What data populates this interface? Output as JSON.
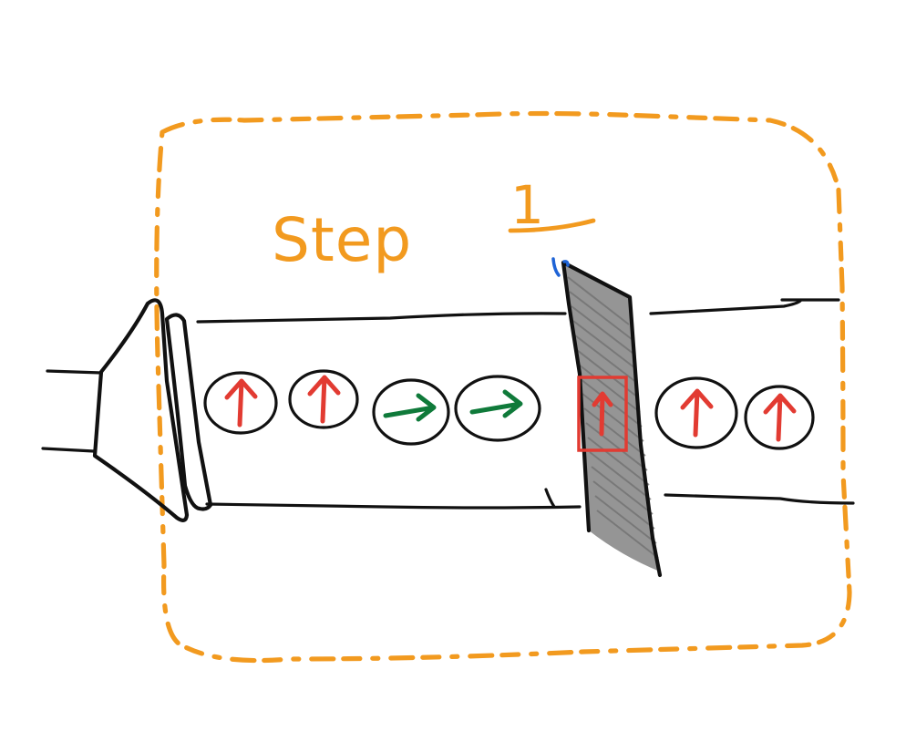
{
  "diagram": {
    "title_text": "Step",
    "title_number": "1",
    "colors": {
      "frame": "#f29a1f",
      "ink": "#111111",
      "red": "#e23b32",
      "green": "#0f7a3a",
      "gate": "#8c8c8c",
      "blue": "#1e63d6"
    },
    "items": [
      {
        "direction": "up",
        "color": "red"
      },
      {
        "direction": "up",
        "color": "red"
      },
      {
        "direction": "right",
        "color": "green"
      },
      {
        "direction": "right",
        "color": "green"
      },
      {
        "direction": "up",
        "color": "red",
        "highlighted": true
      },
      {
        "direction": "up",
        "color": "red"
      },
      {
        "direction": "up",
        "color": "red"
      }
    ],
    "icons": {
      "frame": "dashed-frame-icon",
      "funnel": "funnel-icon",
      "gate": "gate-icon",
      "up_arrow": "up-arrow-icon",
      "right_arrow": "right-arrow-icon"
    }
  }
}
